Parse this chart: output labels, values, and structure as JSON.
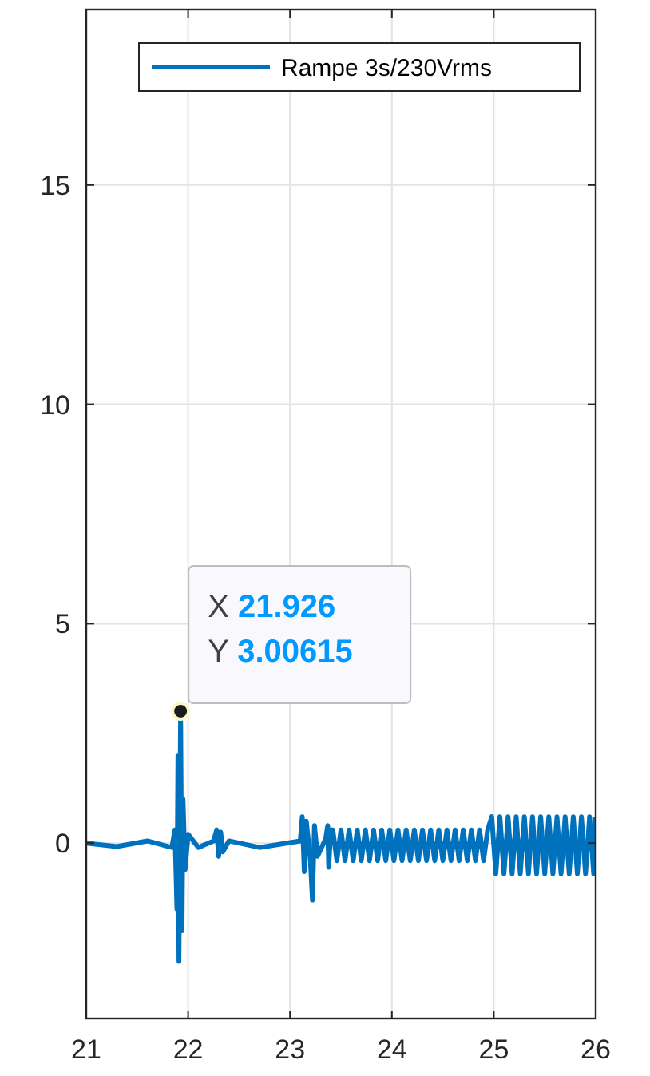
{
  "chart_data": {
    "type": "line",
    "xlim": [
      21,
      26
    ],
    "ylim": [
      -4,
      19
    ],
    "xticks": [
      21,
      22,
      23,
      24,
      25,
      26
    ],
    "yticks": [
      0,
      5,
      10,
      15
    ],
    "grid": true,
    "legend": "top right",
    "line_style": "solid",
    "marker": "none",
    "series": [
      {
        "name": "Rampe 3s/230Vrms",
        "color": "#0072bd",
        "x": [
          21,
          21.3,
          21.6,
          21.84,
          21.87,
          21.89,
          21.9,
          21.91,
          21.926,
          21.94,
          21.95,
          21.97,
          22,
          22.1,
          22.25,
          22.28,
          22.3,
          22.32,
          22.34,
          22.4,
          22.7,
          23.1,
          23.12,
          23.14,
          23.16,
          23.2,
          23.22,
          23.24,
          23.27,
          23.35,
          23.37,
          23.38,
          23.4,
          23.42,
          23.46,
          23.5,
          23.54,
          23.58,
          23.62,
          23.66,
          23.7,
          23.74,
          23.78,
          23.82,
          23.86,
          23.9,
          23.94,
          23.98,
          24.02,
          24.06,
          24.1,
          24.14,
          24.18,
          24.22,
          24.26,
          24.3,
          24.34,
          24.38,
          24.42,
          24.46,
          24.5,
          24.54,
          24.58,
          24.62,
          24.66,
          24.7,
          24.74,
          24.78,
          24.82,
          24.86,
          24.9,
          24.94,
          24.98,
          25.02,
          25.06,
          25.1,
          25.14,
          25.18,
          25.22,
          25.26,
          25.3,
          25.34,
          25.38,
          25.42,
          25.46,
          25.5,
          25.54,
          25.58,
          25.62,
          25.66,
          25.7,
          25.74,
          25.78,
          25.82,
          25.86,
          25.9,
          25.94,
          25.98,
          26
        ],
        "values": [
          0,
          -0.08,
          0.05,
          -0.1,
          0.3,
          -1.5,
          2,
          -2.7,
          3.00615,
          -2,
          1,
          -0.6,
          0.2,
          -0.1,
          0.05,
          0.3,
          -0.3,
          0.25,
          -0.2,
          0.05,
          -0.1,
          0.05,
          0.6,
          -0.65,
          0.5,
          -0.4,
          -1.3,
          0.4,
          -0.3,
          0.1,
          0.4,
          -0.55,
          0.3,
          0.3,
          -0.4,
          0.3,
          -0.4,
          0.3,
          -0.4,
          0.3,
          -0.4,
          0.3,
          -0.4,
          0.3,
          -0.4,
          0.3,
          -0.4,
          0.3,
          -0.4,
          0.3,
          -0.4,
          0.3,
          -0.4,
          0.3,
          -0.4,
          0.3,
          -0.4,
          0.3,
          -0.4,
          0.3,
          -0.4,
          0.3,
          -0.4,
          0.3,
          -0.4,
          0.3,
          -0.4,
          0.3,
          -0.4,
          0.3,
          -0.4,
          0.3,
          0.6,
          -0.7,
          0.6,
          -0.7,
          0.6,
          -0.7,
          0.6,
          -0.7,
          0.6,
          -0.7,
          0.6,
          -0.7,
          0.6,
          -0.7,
          0.6,
          -0.7,
          0.6,
          -0.7,
          0.6,
          -0.7,
          0.6,
          -0.7,
          0.6,
          -0.7,
          0.6,
          -0.7,
          0.6
        ]
      }
    ],
    "annotations": [
      {
        "text": "X 21.926\nY 3.00615",
        "x": 21.926,
        "y": 3.00615
      }
    ]
  }
}
